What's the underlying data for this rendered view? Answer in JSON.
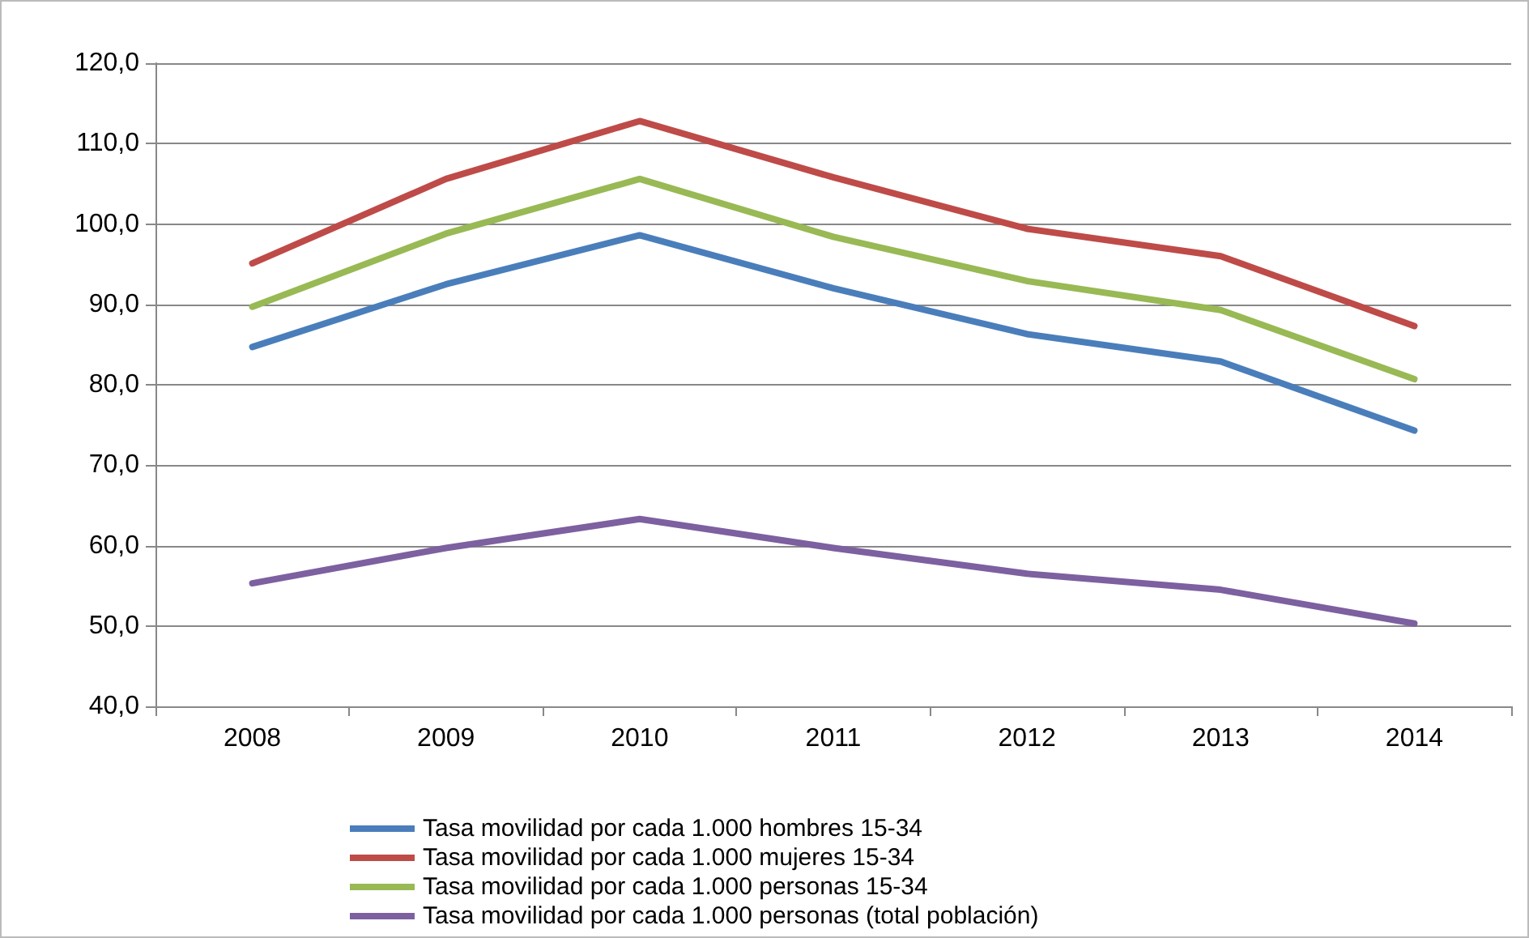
{
  "chart_data": {
    "type": "line",
    "categories": [
      "2008",
      "2009",
      "2010",
      "2011",
      "2012",
      "2013",
      "2014"
    ],
    "series": [
      {
        "name": "Tasa movilidad por cada 1.000 hombres 15-34",
        "color": "#4a7ebb",
        "values": [
          84.7,
          92.5,
          98.6,
          92.0,
          86.3,
          82.9,
          74.3
        ]
      },
      {
        "name": "Tasa movilidad por cada 1.000 mujeres 15-34",
        "color": "#be4b48",
        "values": [
          95.1,
          105.6,
          112.8,
          105.8,
          99.4,
          96.0,
          87.3
        ]
      },
      {
        "name": "Tasa movilidad por cada 1.000 personas 15-34",
        "color": "#98b954",
        "values": [
          89.7,
          98.8,
          105.6,
          98.4,
          92.9,
          89.3,
          80.7
        ]
      },
      {
        "name": "Tasa movilidad por cada 1.000 personas (total población)",
        "color": "#7d60a0",
        "values": [
          55.3,
          59.7,
          63.3,
          59.7,
          56.5,
          54.5,
          50.3
        ]
      }
    ],
    "ylim": [
      40,
      120
    ],
    "yticks": [
      {
        "value": 40,
        "label": "40,0"
      },
      {
        "value": 50,
        "label": "50,0"
      },
      {
        "value": 60,
        "label": "60,0"
      },
      {
        "value": 70,
        "label": "70,0"
      },
      {
        "value": 80,
        "label": "80,0"
      },
      {
        "value": 90,
        "label": "90,0"
      },
      {
        "value": 100,
        "label": "100,0"
      },
      {
        "value": 110,
        "label": "110,0"
      },
      {
        "value": 120,
        "label": "120,0"
      }
    ],
    "grid": "y",
    "legend": "bottom",
    "marker": "none",
    "line_style": "solid"
  }
}
